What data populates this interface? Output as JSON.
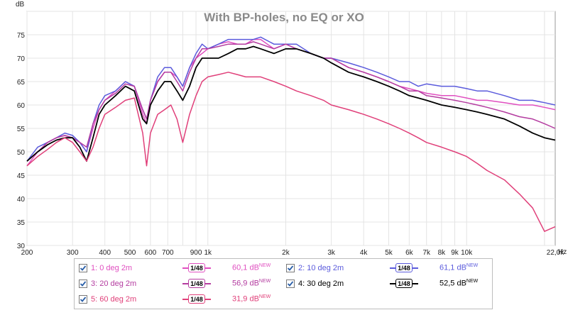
{
  "chart_data": {
    "type": "line",
    "title": "With BP-holes, no EQ or XO",
    "ylabel": "dB",
    "xunit": "Hz",
    "xscale": "log",
    "xlim": [
      200,
      22000
    ],
    "ylim": [
      30,
      80
    ],
    "grid": true,
    "yticks": [
      30,
      35,
      40,
      45,
      50,
      55,
      60,
      65,
      70,
      75
    ],
    "xticks": [
      {
        "v": 200,
        "label": "200"
      },
      {
        "v": 300,
        "label": "300"
      },
      {
        "v": 400,
        "label": "400"
      },
      {
        "v": 500,
        "label": "500"
      },
      {
        "v": 600,
        "label": "600"
      },
      {
        "v": 700,
        "label": "700"
      },
      {
        "v": 900,
        "label": "900"
      },
      {
        "v": 1000,
        "label": "1k"
      },
      {
        "v": 2000,
        "label": "2k"
      },
      {
        "v": 3000,
        "label": "3k"
      },
      {
        "v": 4000,
        "label": "4k"
      },
      {
        "v": 5000,
        "label": "5k"
      },
      {
        "v": 6000,
        "label": "6k"
      },
      {
        "v": 7000,
        "label": "7k"
      },
      {
        "v": 8000,
        "label": "8k"
      },
      {
        "v": 9000,
        "label": "9k"
      },
      {
        "v": 10000,
        "label": "10k"
      },
      {
        "v": 22000,
        "label": "22,0k"
      }
    ],
    "x": [
      200,
      220,
      240,
      260,
      280,
      300,
      320,
      340,
      360,
      380,
      400,
      440,
      480,
      520,
      560,
      580,
      600,
      640,
      680,
      720,
      760,
      800,
      850,
      900,
      950,
      1000,
      1100,
      1200,
      1300,
      1400,
      1500,
      1600,
      1800,
      2000,
      2200,
      2500,
      2800,
      3000,
      3500,
      4000,
      4500,
      5000,
      5500,
      6000,
      6500,
      7000,
      8000,
      9000,
      10000,
      11000,
      12000,
      14000,
      16000,
      18000,
      20000,
      22000
    ],
    "series": [
      {
        "name": "1: 0 deg 2m",
        "color": "#e04fc0",
        "y": [
          47,
          50,
          52,
          53,
          53.5,
          53,
          52,
          50,
          55,
          59,
          61,
          63,
          65,
          64,
          58,
          56,
          61,
          65,
          67,
          67,
          66,
          64,
          68,
          70,
          71,
          72,
          73,
          73.5,
          73,
          73,
          74,
          74,
          72,
          73,
          72,
          71,
          70,
          70,
          68,
          67,
          66,
          65,
          64,
          63.5,
          63,
          62.5,
          62,
          62,
          61.5,
          61,
          61,
          60.5,
          60,
          60,
          59.5,
          59
        ]
      },
      {
        "name": "2: 10 deg 2m",
        "color": "#5b5bdc",
        "y": [
          48,
          51,
          52,
          53,
          54,
          53.5,
          52,
          50,
          56,
          60,
          62,
          63,
          65,
          64,
          59,
          57,
          61,
          66,
          68,
          68,
          66,
          64,
          68,
          71,
          73,
          72,
          73,
          74,
          74,
          74,
          74,
          74.5,
          73,
          73,
          73,
          71,
          70,
          70,
          69,
          68,
          67,
          66,
          65,
          65,
          64,
          64.5,
          64,
          64,
          63.5,
          63,
          63,
          62,
          61,
          61,
          60.5,
          60
        ]
      },
      {
        "name": "3: 20 deg 2m",
        "color": "#b43ca0",
        "y": [
          48,
          50,
          52,
          53,
          53.5,
          53,
          52,
          51,
          56,
          59,
          61,
          62.5,
          64.5,
          64,
          59,
          57,
          61,
          65,
          67,
          67,
          65,
          63,
          67,
          70,
          72,
          72,
          72.5,
          73,
          73,
          73,
          73.5,
          73,
          72,
          73,
          72,
          71,
          70,
          70,
          68,
          67,
          66,
          65,
          64,
          63,
          63,
          62,
          61.5,
          61,
          60.5,
          60,
          59.5,
          58.5,
          57.5,
          57,
          56,
          55
        ]
      },
      {
        "name": "4: 30 deg 2m",
        "color": "#000000",
        "y": [
          48,
          50,
          51.5,
          52.5,
          53,
          53,
          51,
          48,
          53,
          58,
          60,
          62,
          64,
          63,
          57,
          56,
          60,
          63,
          65,
          65,
          63,
          61,
          64,
          68,
          70,
          70,
          70,
          71,
          72,
          72,
          72.5,
          72,
          71,
          72,
          72,
          71,
          70,
          69,
          67,
          66,
          65,
          64,
          63,
          62,
          61.5,
          61,
          60,
          59.5,
          59,
          58.5,
          58,
          57,
          55.5,
          54,
          53,
          52.5
        ]
      },
      {
        "name": "5: 60 deg 2m",
        "color": "#e0407a",
        "y": [
          47,
          49,
          50.5,
          52,
          53,
          52,
          50,
          48,
          51,
          55,
          58,
          59.5,
          61,
          61.5,
          54,
          47,
          54,
          58,
          59,
          60,
          57,
          52,
          58,
          62,
          65,
          66,
          66.5,
          67,
          66.5,
          66,
          66,
          66,
          65,
          64,
          63,
          62,
          61,
          60,
          59,
          58,
          57,
          56,
          55,
          54,
          53,
          52,
          51,
          50,
          49,
          47.5,
          46,
          44,
          41,
          38,
          33,
          34
        ]
      }
    ]
  },
  "legend": {
    "items": [
      {
        "label": "1: 0 deg 2m",
        "smooth": "1/48",
        "level": "60,1 dB",
        "tag": "NEW",
        "color": "#e04fc0",
        "checked": true
      },
      {
        "label": "2: 10 deg 2m",
        "smooth": "1/48",
        "level": "61,1 dB",
        "tag": "NEW",
        "color": "#5b5bdc",
        "checked": true
      },
      {
        "label": "3: 20 deg 2m",
        "smooth": "1/48",
        "level": "56,9 dB",
        "tag": "NEW",
        "color": "#b43ca0",
        "checked": true
      },
      {
        "label": "4: 30 deg 2m",
        "smooth": "1/48",
        "level": "52,5 dB",
        "tag": "NEW",
        "color": "#000000",
        "checked": true
      },
      {
        "label": "5: 60 deg 2m",
        "smooth": "1/48",
        "level": "31,9 dB",
        "tag": "NEW",
        "color": "#e0407a",
        "checked": true
      }
    ]
  }
}
